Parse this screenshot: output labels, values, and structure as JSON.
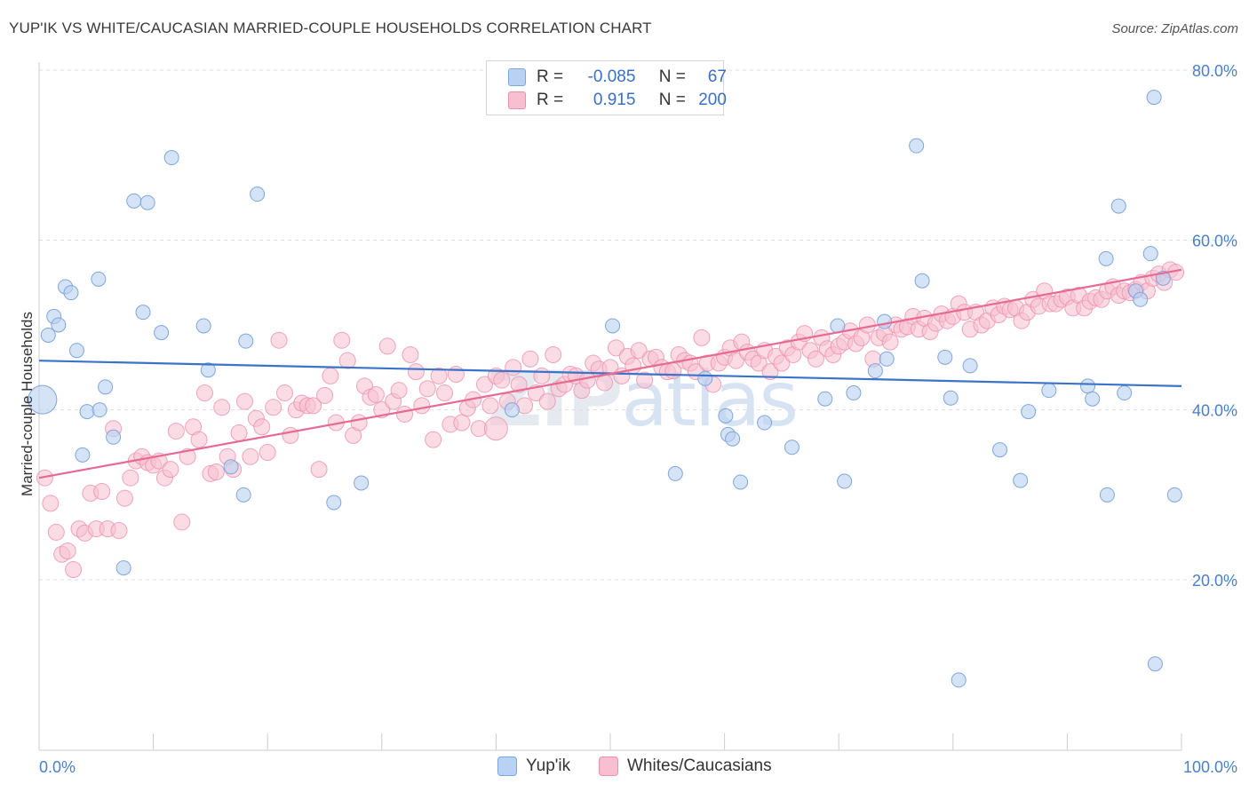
{
  "title": "YUP'IK VS WHITE/CAUCASIAN MARRIED-COUPLE HOUSEHOLDS CORRELATION CHART",
  "source": "Source: ZipAtlas.com",
  "watermark": {
    "zip": "ZIP",
    "atlas": "atlas"
  },
  "legend": {
    "r_label": "R =",
    "n_label": "N =",
    "series": [
      {
        "name": "Yup'ik",
        "r": "-0.085",
        "n": "67"
      },
      {
        "name": "Whites/Caucasians",
        "r": "0.915",
        "n": "200"
      }
    ]
  },
  "colors": {
    "yupik_fill": "#b9d1f2",
    "yupik_stroke": "#7fa6dc",
    "yupik_line": "#3a73c9",
    "white_fill": "#f7bfd0",
    "white_stroke": "#ec90ad",
    "white_line": "#e76a93",
    "grid": "#dddddd",
    "axis_text": "#4a7fcb"
  },
  "chart_data": {
    "type": "scatter",
    "title": "YUP'IK VS WHITE/CAUCASIAN MARRIED-COUPLE HOUSEHOLDS CORRELATION CHART",
    "xlabel": "",
    "ylabel": "Married-couple Households",
    "xlim": [
      0,
      100
    ],
    "ylim": [
      0,
      83
    ],
    "x_tick_labels": [
      "0.0%",
      "100.0%"
    ],
    "y_ticks": [
      20,
      40,
      60,
      80
    ],
    "y_tick_labels": [
      "20.0%",
      "40.0%",
      "60.0%",
      "80.0%"
    ],
    "legend_position": "top-center",
    "series": [
      {
        "name": "Yup'ik",
        "trend": {
          "x": [
            0,
            100
          ],
          "y": [
            45.8,
            42.8
          ]
        },
        "points": [
          [
            0.3,
            41.2
          ],
          [
            0.8,
            48.8
          ],
          [
            1.3,
            51
          ],
          [
            1.7,
            50
          ],
          [
            2.3,
            54.5
          ],
          [
            2.8,
            53.8
          ],
          [
            3.3,
            47
          ],
          [
            3.8,
            34.7
          ],
          [
            4.2,
            39.8
          ],
          [
            5.2,
            55.4
          ],
          [
            5.3,
            40
          ],
          [
            5.8,
            42.7
          ],
          [
            6.5,
            36.8
          ],
          [
            7.4,
            21.4
          ],
          [
            8.3,
            64.6
          ],
          [
            9.1,
            51.5
          ],
          [
            9.5,
            64.4
          ],
          [
            10.7,
            49.1
          ],
          [
            11.6,
            69.7
          ],
          [
            14.4,
            49.9
          ],
          [
            14.8,
            44.7
          ],
          [
            16.8,
            33.3
          ],
          [
            17.9,
            30
          ],
          [
            18.1,
            48.1
          ],
          [
            19.1,
            65.4
          ],
          [
            25.8,
            29.1
          ],
          [
            28.2,
            31.4
          ],
          [
            41.4,
            40
          ],
          [
            50.2,
            49.9
          ],
          [
            55.7,
            32.5
          ],
          [
            58.3,
            43.7
          ],
          [
            60.1,
            39.3
          ],
          [
            60.3,
            37.1
          ],
          [
            60.7,
            36.6
          ],
          [
            61.4,
            31.5
          ],
          [
            63.5,
            38.5
          ],
          [
            65.9,
            35.6
          ],
          [
            68.8,
            41.3
          ],
          [
            69.9,
            49.9
          ],
          [
            70.5,
            31.6
          ],
          [
            71.3,
            42
          ],
          [
            73.2,
            44.6
          ],
          [
            74,
            50.4
          ],
          [
            74.2,
            46
          ],
          [
            76.8,
            71.1
          ],
          [
            77.3,
            55.2
          ],
          [
            79.3,
            46.2
          ],
          [
            79.8,
            41.4
          ],
          [
            81.5,
            45.2
          ],
          [
            84.1,
            35.3
          ],
          [
            85.9,
            31.7
          ],
          [
            86.6,
            39.8
          ],
          [
            88.4,
            42.3
          ],
          [
            91.8,
            42.8
          ],
          [
            92.2,
            41.3
          ],
          [
            93.4,
            57.8
          ],
          [
            93.5,
            30
          ],
          [
            94.5,
            64
          ],
          [
            95,
            42
          ],
          [
            96,
            54
          ],
          [
            96.4,
            53
          ],
          [
            97.3,
            58.4
          ],
          [
            97.6,
            76.8
          ],
          [
            97.7,
            10.1
          ],
          [
            98.4,
            55.5
          ],
          [
            99.4,
            30
          ],
          [
            80.5,
            8.2
          ]
        ]
      },
      {
        "name": "Whites/Caucasians",
        "trend": {
          "x": [
            0,
            100
          ],
          "y": [
            32,
            56.5
          ]
        },
        "points": [
          [
            0.5,
            32
          ],
          [
            1,
            29
          ],
          [
            1.5,
            25.6
          ],
          [
            2,
            23
          ],
          [
            2.5,
            23.4
          ],
          [
            3,
            21.2
          ],
          [
            3.5,
            26
          ],
          [
            4,
            25.5
          ],
          [
            4.5,
            30.2
          ],
          [
            5,
            26
          ],
          [
            5.5,
            30.4
          ],
          [
            6,
            26
          ],
          [
            6.5,
            37.8
          ],
          [
            7,
            25.8
          ],
          [
            7.5,
            29.6
          ],
          [
            8,
            32
          ],
          [
            8.5,
            34
          ],
          [
            9,
            34.5
          ],
          [
            9.5,
            33.8
          ],
          [
            10,
            33.5
          ],
          [
            10.5,
            34
          ],
          [
            11,
            32
          ],
          [
            11.5,
            33
          ],
          [
            12,
            37.5
          ],
          [
            12.5,
            26.8
          ],
          [
            13,
            34.5
          ],
          [
            13.5,
            38
          ],
          [
            14,
            36.5
          ],
          [
            14.5,
            42
          ],
          [
            15,
            32.5
          ],
          [
            15.5,
            32.7
          ],
          [
            16,
            40.3
          ],
          [
            16.5,
            34.5
          ],
          [
            17,
            33
          ],
          [
            17.5,
            37.3
          ],
          [
            18,
            41
          ],
          [
            18.5,
            34.5
          ],
          [
            19,
            39
          ],
          [
            19.5,
            38
          ],
          [
            20,
            35
          ],
          [
            20.5,
            40.3
          ],
          [
            21,
            48.2
          ],
          [
            21.5,
            42
          ],
          [
            22,
            37
          ],
          [
            22.5,
            40
          ],
          [
            23,
            40.8
          ],
          [
            23.5,
            40.5
          ],
          [
            24,
            40.5
          ],
          [
            24.5,
            33
          ],
          [
            25,
            41.7
          ],
          [
            25.5,
            44
          ],
          [
            26,
            38.5
          ],
          [
            26.5,
            48.2
          ],
          [
            27,
            45.8
          ],
          [
            27.5,
            37
          ],
          [
            28,
            38.5
          ],
          [
            28.5,
            42.8
          ],
          [
            29,
            41.5
          ],
          [
            29.5,
            41.8
          ],
          [
            30,
            40
          ],
          [
            30.5,
            47.5
          ],
          [
            31,
            41
          ],
          [
            31.5,
            42.3
          ],
          [
            32,
            39.5
          ],
          [
            32.5,
            46.5
          ],
          [
            33,
            44.5
          ],
          [
            33.5,
            40.5
          ],
          [
            34,
            42.5
          ],
          [
            34.5,
            36.5
          ],
          [
            35,
            44
          ],
          [
            35.5,
            42
          ],
          [
            36,
            38.3
          ],
          [
            36.5,
            44.2
          ],
          [
            37,
            38.5
          ],
          [
            37.5,
            40.2
          ],
          [
            38,
            41.2
          ],
          [
            38.5,
            37.8
          ],
          [
            39,
            43
          ],
          [
            39.5,
            40.5
          ],
          [
            40,
            44
          ],
          [
            40.5,
            43.5
          ],
          [
            41,
            41
          ],
          [
            41.5,
            45
          ],
          [
            42,
            43
          ],
          [
            42.5,
            40.5
          ],
          [
            43,
            46
          ],
          [
            43.5,
            42
          ],
          [
            44,
            44
          ],
          [
            44.5,
            41
          ],
          [
            45,
            46.5
          ],
          [
            45.5,
            42.5
          ],
          [
            46,
            43
          ],
          [
            46.5,
            44.2
          ],
          [
            47,
            44
          ],
          [
            47.5,
            42.3
          ],
          [
            48,
            43.5
          ],
          [
            48.5,
            45.5
          ],
          [
            49,
            44.8
          ],
          [
            49.5,
            43.2
          ],
          [
            50,
            45
          ],
          [
            50.5,
            47.3
          ],
          [
            51,
            44
          ],
          [
            51.5,
            46.3
          ],
          [
            52,
            45.2
          ],
          [
            52.5,
            47
          ],
          [
            53,
            43.5
          ],
          [
            53.5,
            46
          ],
          [
            54,
            46.2
          ],
          [
            54.5,
            45
          ],
          [
            55,
            44.5
          ],
          [
            55.5,
            44.6
          ],
          [
            56,
            46.5
          ],
          [
            56.5,
            45.8
          ],
          [
            57,
            45.5
          ],
          [
            57.5,
            44.5
          ],
          [
            58,
            48.5
          ],
          [
            58.5,
            45.5
          ],
          [
            59,
            43
          ],
          [
            59.5,
            45.5
          ],
          [
            60,
            46.2
          ],
          [
            60.5,
            47.3
          ],
          [
            61,
            45.8
          ],
          [
            61.5,
            48
          ],
          [
            62,
            46.8
          ],
          [
            62.5,
            46
          ],
          [
            63,
            45.5
          ],
          [
            63.5,
            47
          ],
          [
            64,
            44.5
          ],
          [
            64.5,
            46.3
          ],
          [
            65,
            45.5
          ],
          [
            65.5,
            47.3
          ],
          [
            66,
            46.5
          ],
          [
            66.5,
            48
          ],
          [
            67,
            49
          ],
          [
            67.5,
            47
          ],
          [
            68,
            46
          ],
          [
            68.5,
            48.5
          ],
          [
            69,
            47.2
          ],
          [
            69.5,
            46.5
          ],
          [
            70,
            47.5
          ],
          [
            70.5,
            48
          ],
          [
            71,
            49.3
          ],
          [
            71.5,
            47.8
          ],
          [
            72,
            48.5
          ],
          [
            72.5,
            50
          ],
          [
            73,
            46
          ],
          [
            73.5,
            48.5
          ],
          [
            74,
            49
          ],
          [
            74.5,
            48
          ],
          [
            75,
            50
          ],
          [
            75.5,
            49.5
          ],
          [
            76,
            49.8
          ],
          [
            76.5,
            51
          ],
          [
            77,
            49.5
          ],
          [
            77.5,
            50.8
          ],
          [
            78,
            49.2
          ],
          [
            78.5,
            50.2
          ],
          [
            79,
            51.3
          ],
          [
            79.5,
            50.5
          ],
          [
            80,
            51
          ],
          [
            80.5,
            52.5
          ],
          [
            81,
            51.5
          ],
          [
            81.5,
            49.5
          ],
          [
            82,
            51.5
          ],
          [
            82.5,
            50
          ],
          [
            83,
            50.5
          ],
          [
            83.5,
            52
          ],
          [
            84,
            51.2
          ],
          [
            84.5,
            52.2
          ],
          [
            85,
            51.8
          ],
          [
            85.5,
            52
          ],
          [
            86,
            50.5
          ],
          [
            86.5,
            51.5
          ],
          [
            87,
            53
          ],
          [
            87.5,
            52.2
          ],
          [
            88,
            54
          ],
          [
            88.5,
            52.5
          ],
          [
            89,
            52.5
          ],
          [
            89.5,
            53
          ],
          [
            90,
            53.3
          ],
          [
            90.5,
            52
          ],
          [
            91,
            53.5
          ],
          [
            91.5,
            52
          ],
          [
            92,
            52.8
          ],
          [
            92.5,
            53.2
          ],
          [
            93,
            53
          ],
          [
            93.5,
            54
          ],
          [
            94,
            54.5
          ],
          [
            94.5,
            53.5
          ],
          [
            95,
            54
          ],
          [
            95.5,
            53.8
          ],
          [
            96,
            54.2
          ],
          [
            96.5,
            55
          ],
          [
            97,
            54
          ],
          [
            97.5,
            55.5
          ],
          [
            98,
            56
          ],
          [
            98.5,
            55
          ],
          [
            99,
            56.5
          ],
          [
            99.5,
            56.2
          ],
          [
            40,
            37.8
          ]
        ]
      }
    ]
  }
}
